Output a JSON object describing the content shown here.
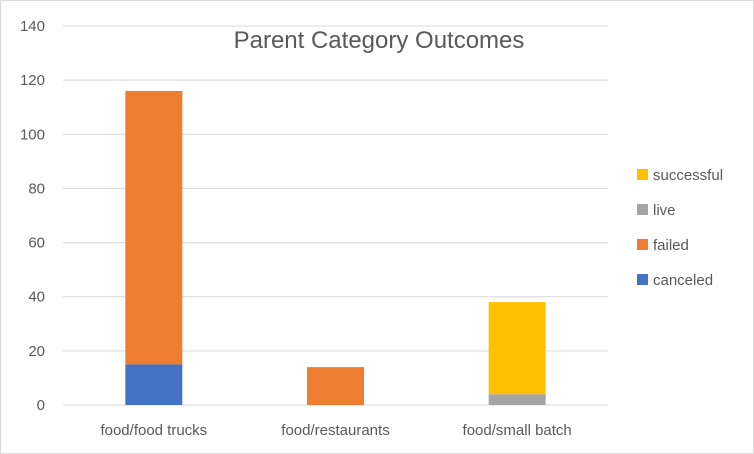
{
  "chart_data": {
    "type": "bar",
    "stacked": true,
    "title": "Parent Category Outcomes",
    "xlabel": "",
    "ylabel": "",
    "ylim": [
      0,
      140
    ],
    "yticks": [
      0,
      20,
      40,
      60,
      80,
      100,
      120,
      140
    ],
    "grid": true,
    "legend_position": "right",
    "categories": [
      "food/food trucks",
      "food/restaurants",
      "food/small batch"
    ],
    "series": [
      {
        "name": "canceled",
        "color": "#4472c4",
        "values": [
          15,
          0,
          0
        ]
      },
      {
        "name": "failed",
        "color": "#ed7d31",
        "values": [
          101,
          14,
          0
        ]
      },
      {
        "name": "live",
        "color": "#a5a5a5",
        "values": [
          0,
          0,
          4
        ]
      },
      {
        "name": "successful",
        "color": "#ffc000",
        "values": [
          0,
          0,
          34
        ]
      }
    ],
    "legend_order": [
      "successful",
      "live",
      "failed",
      "canceled"
    ]
  }
}
